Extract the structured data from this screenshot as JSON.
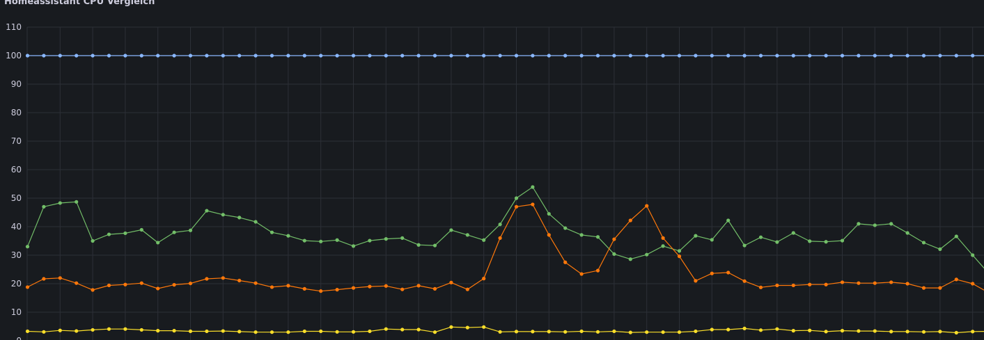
{
  "panel": {
    "title": "Homeassistant CPU Vergleich"
  },
  "chart_data": {
    "type": "line",
    "title": "Homeassistant CPU Vergleich",
    "ylim": [
      0,
      110
    ],
    "yticks": [
      0,
      10,
      20,
      30,
      40,
      50,
      60,
      70,
      80,
      90,
      100,
      110
    ],
    "grid": true,
    "background": "#181b1f",
    "grid_color": "#2c3037",
    "series": [
      {
        "color": "#73bf69",
        "values": [
          33,
          47,
          48.3,
          48.7,
          35,
          37.3,
          37.7,
          38.9,
          34.4,
          38,
          38.7,
          45.6,
          44.2,
          43.2,
          41.7,
          38,
          36.8,
          35.1,
          34.8,
          35.3,
          33.2,
          35.1,
          35.7,
          36,
          33.6,
          33.4,
          38.8,
          37.1,
          35.3,
          40.8,
          50,
          53.9,
          44.5,
          39.5,
          37.1,
          36.4,
          30.4,
          28.6,
          30.2,
          33.2,
          31.5,
          36.8,
          35.4,
          42.2,
          33.4,
          36.3,
          34.6,
          37.8,
          34.9,
          34.7,
          35.1,
          41,
          40.5,
          41,
          37.8,
          34.4,
          32.1,
          36.6,
          30,
          23.5
        ]
      },
      {
        "color": "#ff780a",
        "values": [
          18.8,
          21.7,
          22,
          20.2,
          17.8,
          19.4,
          19.7,
          20.2,
          18.3,
          19.6,
          20.1,
          21.7,
          22,
          21.1,
          20.2,
          18.8,
          19.3,
          18.2,
          17.4,
          17.9,
          18.5,
          19,
          19.2,
          18,
          19.3,
          18.2,
          20.4,
          18,
          21.8,
          36,
          47,
          47.8,
          37.1,
          27.5,
          23.4,
          24.6,
          35.6,
          42.2,
          47.3,
          36,
          29.6,
          21,
          23.6,
          23.9,
          20.9,
          18.7,
          19.4,
          19.4,
          19.7,
          19.7,
          20.5,
          20.2,
          20.2,
          20.5,
          20,
          18.5,
          18.5,
          21.5,
          20,
          16.8
        ]
      },
      {
        "color": "#fade2a",
        "values": [
          3.3,
          3.1,
          3.6,
          3.4,
          3.8,
          4.1,
          4.1,
          3.8,
          3.5,
          3.5,
          3.3,
          3.3,
          3.4,
          3.2,
          3,
          3,
          3,
          3.3,
          3.3,
          3.1,
          3.1,
          3.3,
          4.1,
          3.9,
          3.9,
          3,
          4.8,
          4.6,
          4.8,
          3.1,
          3.2,
          3.2,
          3.2,
          3.1,
          3.3,
          3.1,
          3.3,
          2.9,
          3,
          3,
          3,
          3.3,
          3.9,
          3.9,
          4.3,
          3.7,
          4.1,
          3.5,
          3.6,
          3.2,
          3.5,
          3.4,
          3.4,
          3.2,
          3.2,
          3.1,
          3.2,
          2.8,
          3.2,
          3.3
        ]
      },
      {
        "color": "#8ab8ff",
        "values": [
          100,
          100,
          100,
          100,
          100,
          100,
          100,
          100,
          100,
          100,
          100,
          100,
          100,
          100,
          100,
          100,
          100,
          100,
          100,
          100,
          100,
          100,
          100,
          100,
          100,
          100,
          100,
          100,
          100,
          100,
          100,
          100,
          100,
          100,
          100,
          100,
          100,
          100,
          100,
          100,
          100,
          100,
          100,
          100,
          100,
          100,
          100,
          100,
          100,
          100,
          100,
          100,
          100,
          100,
          100,
          100,
          100,
          100,
          100,
          100
        ]
      }
    ]
  }
}
